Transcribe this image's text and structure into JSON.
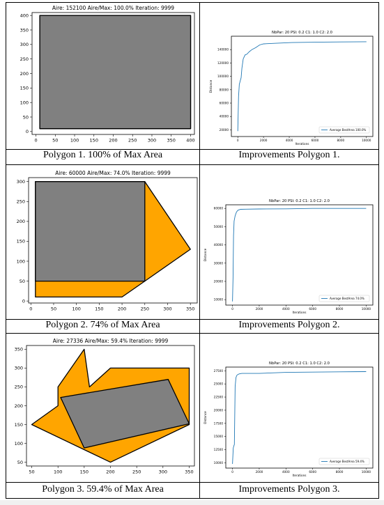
{
  "captions": [
    "Polygon 1. 100% of Max Area",
    "Improvements Polygon 1.",
    "Polygon 2. 74% of Max Area",
    "Improvements Polygon 2.",
    "Polygon 3. 59.4% of Max Area",
    "Improvements Polygon 3."
  ],
  "chart_data": [
    {
      "type": "polygon-plot",
      "title": "Aire: 152100 Aire/Max: 100.0% Iteration: 9999",
      "xlim": [
        -10,
        410
      ],
      "ylim": [
        -10,
        410
      ],
      "xticks": [
        0,
        50,
        100,
        150,
        200,
        250,
        300,
        350,
        400
      ],
      "yticks": [
        0,
        50,
        100,
        150,
        200,
        250,
        300,
        350,
        400
      ],
      "colors": {
        "outer": "#808080",
        "inner": "#808080",
        "edge": "#000000"
      },
      "outer_polygon": [
        [
          10,
          10
        ],
        [
          400,
          10
        ],
        [
          400,
          400
        ],
        [
          10,
          400
        ]
      ],
      "inner_polygon": [
        [
          10,
          10
        ],
        [
          400,
          10
        ],
        [
          400,
          400
        ],
        [
          10,
          400
        ]
      ]
    },
    {
      "type": "line",
      "title": "NbPar: 20 PSI: 0.2 C1: 1.0 C2: 2.0",
      "xlabel": "Iterations",
      "ylabel": "Distance",
      "xlim": [
        -500,
        10500
      ],
      "ylim": [
        10000,
        160000
      ],
      "xticks": [
        0,
        2000,
        4000,
        6000,
        8000,
        10000
      ],
      "yticks": [
        20000,
        40000,
        60000,
        80000,
        100000,
        120000,
        140000
      ],
      "legend": "top-left",
      "color": "#1f77b4",
      "series": [
        {
          "name": "Average BestArea 100.0%",
          "x": [
            0,
            60,
            120,
            200,
            260,
            320,
            420,
            560,
            700,
            900,
            1100,
            1400,
            1700,
            2000,
            3000,
            4200,
            6000,
            8000,
            10000
          ],
          "y": [
            18000,
            70000,
            88000,
            94000,
            98000,
            112000,
            126000,
            132000,
            133000,
            137000,
            140000,
            143000,
            147000,
            148500,
            149500,
            150500,
            151000,
            151500,
            151800
          ]
        }
      ]
    },
    {
      "type": "polygon-plot",
      "title": "Aire: 60000 Aire/Max: 74.0% Iteration: 9999",
      "xlim": [
        -5,
        365
      ],
      "ylim": [
        -5,
        310
      ],
      "xticks": [
        0,
        50,
        100,
        150,
        200,
        250,
        300,
        350
      ],
      "yticks": [
        0,
        50,
        100,
        150,
        200,
        250,
        300
      ],
      "colors": {
        "outer": "#ffa500",
        "inner": "#808080",
        "edge": "#000000"
      },
      "outer_polygon": [
        [
          10,
          10
        ],
        [
          200,
          10
        ],
        [
          250,
          50
        ],
        [
          350,
          130
        ],
        [
          250,
          300
        ],
        [
          10,
          300
        ]
      ],
      "inner_polygon": [
        [
          10,
          50
        ],
        [
          250,
          50
        ],
        [
          250,
          300
        ],
        [
          10,
          300
        ]
      ]
    },
    {
      "type": "line",
      "title": "NbPar: 20 PSI: 0.2 C1: 1.0 C2: 2.0",
      "xlabel": "Iterations",
      "ylabel": "Distance",
      "xlim": [
        -500,
        10500
      ],
      "ylim": [
        7000,
        62000
      ],
      "xticks": [
        0,
        2000,
        4000,
        6000,
        8000,
        10000
      ],
      "yticks": [
        10000,
        20000,
        30000,
        40000,
        50000,
        60000
      ],
      "legend": "bottom-right",
      "color": "#1f77b4",
      "series": [
        {
          "name": "Average BestArea 74.0%",
          "x": [
            0,
            40,
            80,
            120,
            200,
            300,
            400,
            600,
            1000,
            2000,
            4000,
            6000,
            8000,
            10000
          ],
          "y": [
            9000,
            22000,
            45000,
            53000,
            56000,
            58000,
            59000,
            59500,
            59600,
            59700,
            59800,
            60000,
            60000,
            60000
          ]
        }
      ]
    },
    {
      "type": "polygon-plot",
      "title": "Aire: 27336 Aire/Max: 59.4% Iteration: 9999",
      "xlim": [
        40,
        360
      ],
      "ylim": [
        40,
        360
      ],
      "xticks": [
        50,
        100,
        150,
        200,
        250,
        300,
        350
      ],
      "yticks": [
        50,
        100,
        150,
        200,
        250,
        300,
        350
      ],
      "colors": {
        "outer": "#ffa500",
        "inner": "#808080",
        "edge": "#000000"
      },
      "outer_polygon": [
        [
          50,
          150
        ],
        [
          100,
          200
        ],
        [
          100,
          250
        ],
        [
          150,
          350
        ],
        [
          160,
          250
        ],
        [
          200,
          300
        ],
        [
          350,
          300
        ],
        [
          350,
          150
        ],
        [
          200,
          50
        ]
      ],
      "inner_polygon": [
        [
          105,
          222
        ],
        [
          310,
          270
        ],
        [
          350,
          152
        ],
        [
          150,
          88
        ]
      ]
    },
    {
      "type": "line",
      "title": "NbPar: 20 PSI: 0.2 C1: 1.0 C2: 2.0",
      "xlabel": "Iterations",
      "ylabel": "Distance",
      "xlim": [
        -500,
        10500
      ],
      "ylim": [
        9000,
        28200
      ],
      "xticks": [
        0,
        2000,
        4000,
        6000,
        8000,
        10000
      ],
      "yticks": [
        10000,
        12500,
        15000,
        17500,
        20000,
        22500,
        25000,
        27500
      ],
      "legend": "bottom-right",
      "color": "#1f77b4",
      "series": [
        {
          "name": "Average BestArea 59.4%",
          "x": [
            0,
            60,
            100,
            140,
            200,
            260,
            320,
            400,
            500,
            700,
            1000,
            2000,
            3000,
            4000,
            6000,
            8000,
            10000
          ],
          "y": [
            9800,
            12800,
            13200,
            13500,
            24500,
            26200,
            26600,
            26800,
            26900,
            27000,
            27000,
            27000,
            27100,
            27200,
            27250,
            27300,
            27336
          ]
        }
      ]
    }
  ]
}
